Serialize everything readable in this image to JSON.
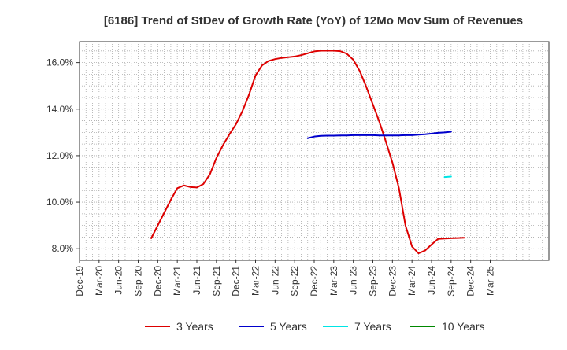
{
  "chart_data": {
    "type": "line",
    "title": "[6186]  Trend of StDev of Growth Rate (YoY) of 12Mo Mov Sum of Revenues",
    "xlabel": "",
    "ylabel": "",
    "ylim": [
      7.5,
      16.9
    ],
    "yticks": [
      8.0,
      10.0,
      12.0,
      14.0,
      16.0
    ],
    "ytick_labels": [
      "8.0%",
      "10.0%",
      "12.0%",
      "14.0%",
      "16.0%"
    ],
    "x_start": "Dec-19",
    "x_end": "Dec-25",
    "xtick_labels": [
      "Dec-19",
      "Mar-20",
      "Jun-20",
      "Sep-20",
      "Dec-20",
      "Mar-21",
      "Jun-21",
      "Sep-21",
      "Dec-21",
      "Mar-22",
      "Jun-22",
      "Sep-22",
      "Dec-22",
      "Mar-23",
      "Jun-23",
      "Sep-23",
      "Dec-23",
      "Mar-24",
      "Jun-24",
      "Sep-24",
      "Dec-24",
      "Mar-25"
    ],
    "grid": true,
    "legend_position": "bottom",
    "series": [
      {
        "name": "3 Years",
        "color": "#dd0000",
        "start_index": 11,
        "values": [
          8.45,
          9.0,
          9.55,
          10.1,
          10.6,
          10.72,
          10.65,
          10.63,
          10.78,
          11.2,
          11.9,
          12.45,
          12.92,
          13.35,
          13.92,
          14.62,
          15.45,
          15.88,
          16.07,
          16.15,
          16.2,
          16.23,
          16.26,
          16.32,
          16.4,
          16.48,
          16.51,
          16.51,
          16.51,
          16.49,
          16.38,
          16.12,
          15.63,
          14.95,
          14.2,
          13.45,
          12.6,
          11.7,
          10.6,
          9.0,
          8.1,
          7.8,
          7.92,
          8.18,
          8.42,
          8.44,
          8.45,
          8.46,
          8.47
        ]
      },
      {
        "name": "5 Years",
        "color": "#0000cc",
        "start_index": 35,
        "values": [
          12.75,
          12.82,
          12.85,
          12.86,
          12.86,
          12.87,
          12.87,
          12.88,
          12.88,
          12.88,
          12.88,
          12.87,
          12.87,
          12.87,
          12.87,
          12.88,
          12.88,
          12.9,
          12.92,
          12.95,
          12.98,
          13.0,
          13.03
        ]
      },
      {
        "name": "7 Years",
        "color": "#00e5e5",
        "start_index": 56,
        "values": [
          11.08,
          11.1
        ]
      },
      {
        "name": "10 Years",
        "color": "#008800",
        "start_index": 0,
        "values": []
      }
    ]
  }
}
